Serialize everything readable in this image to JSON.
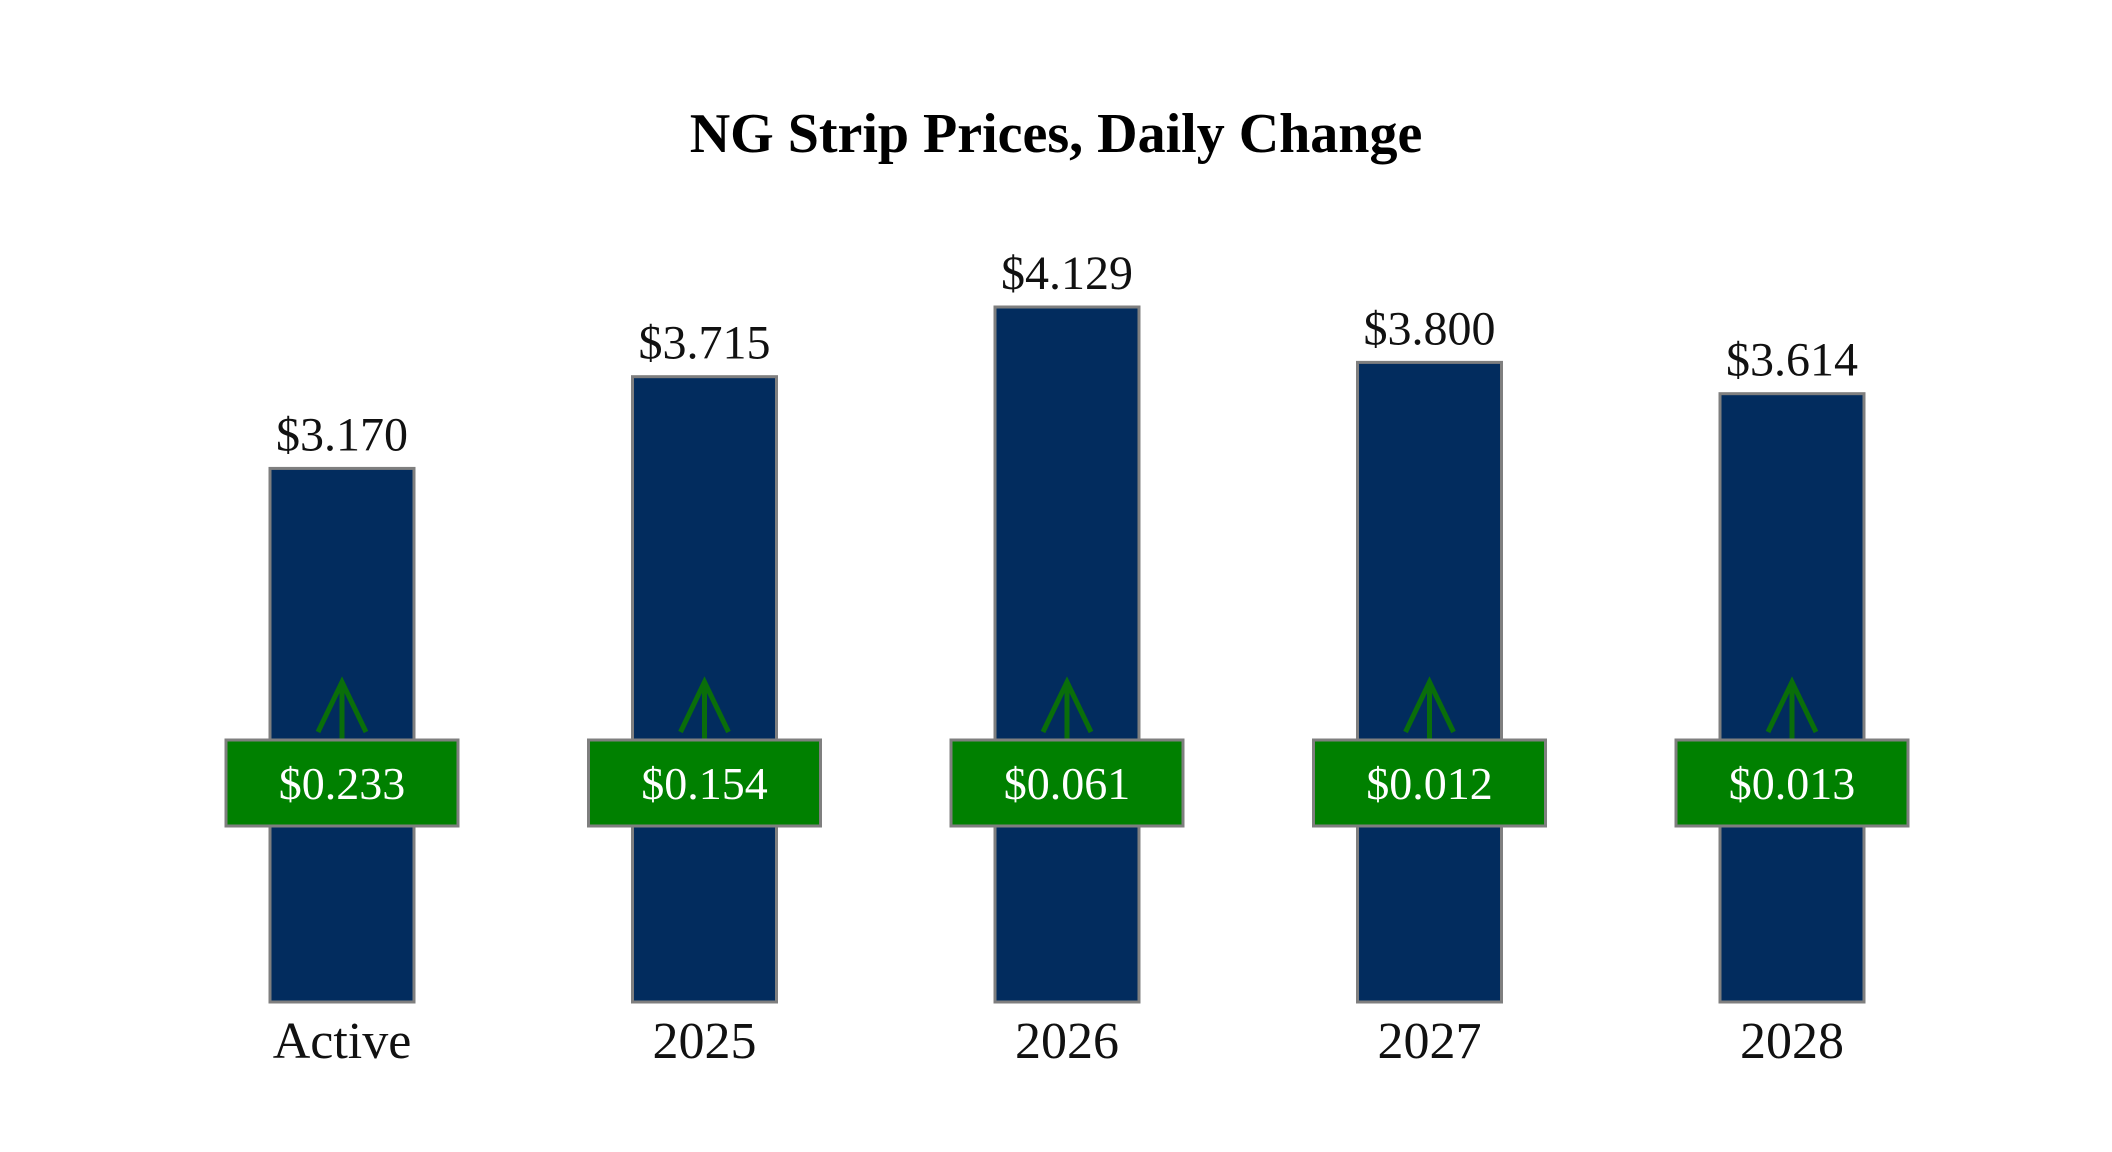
{
  "chart_data": {
    "type": "bar",
    "title": "NG Strip Prices, Daily Change",
    "xlabel": "",
    "ylabel": "",
    "ylim": [
      0,
      4.129
    ],
    "grid": false,
    "categories": [
      "Active",
      "2025",
      "2026",
      "2027",
      "2028"
    ],
    "values": [
      3.17,
      3.715,
      4.129,
      3.8,
      3.614
    ],
    "price_labels": [
      "$3.170",
      "$3.715",
      "$4.129",
      "$3.800",
      "$3.614"
    ],
    "changes": [
      0.233,
      0.154,
      0.061,
      0.012,
      0.013
    ],
    "change_labels": [
      "$0.233",
      "$0.154",
      "$0.061",
      "$0.012",
      "$0.013"
    ],
    "change_direction": [
      "up",
      "up",
      "up",
      "up",
      "up"
    ],
    "colors": {
      "bar_fill": "#022C5E",
      "bar_stroke": "#7F7F7F",
      "change_box_fill": "#008000",
      "change_box_stroke": "#7F7F7F",
      "arrow_up": "#0A6E0A",
      "change_text": "#FFFFFF"
    }
  }
}
